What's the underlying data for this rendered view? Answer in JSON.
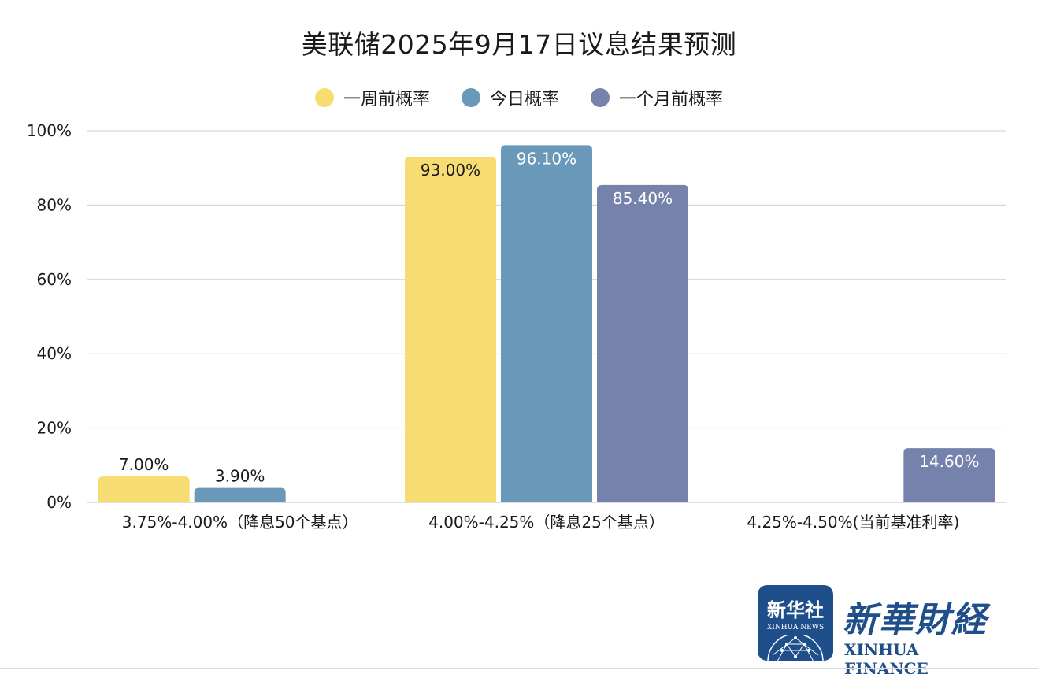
{
  "chart_data": {
    "type": "bar",
    "title": "美联储2025年9月17日议息结果预测",
    "categories": [
      "3.75%-4.00%（降息50个基点）",
      "4.00%-4.25%（降息25个基点）",
      "4.25%-4.50%(当前基准利率)"
    ],
    "series": [
      {
        "name": "一周前概率",
        "values": [
          7.0,
          93.0,
          null
        ],
        "labels": [
          "7.00%",
          "93.00%",
          ""
        ],
        "color": "#f7dd71"
      },
      {
        "name": "今日概率",
        "values": [
          3.9,
          96.1,
          null
        ],
        "labels": [
          "3.90%",
          "96.10%",
          ""
        ],
        "color": "#6a98b8"
      },
      {
        "name": "一个月前概率",
        "values": [
          null,
          85.4,
          14.6
        ],
        "labels": [
          "",
          "85.40%",
          "14.60%"
        ],
        "color": "#7582ac"
      }
    ],
    "yticks": [
      "0%",
      "20%",
      "40%",
      "60%",
      "80%",
      "100%"
    ],
    "ylim": [
      0,
      100
    ],
    "grid": true,
    "legend_position": "top"
  },
  "logo": {
    "badge_cn": "新华社",
    "badge_en": "XINHUA NEWS",
    "name_cn": "新華財経",
    "name_en": "XINHUA FINANCE"
  }
}
